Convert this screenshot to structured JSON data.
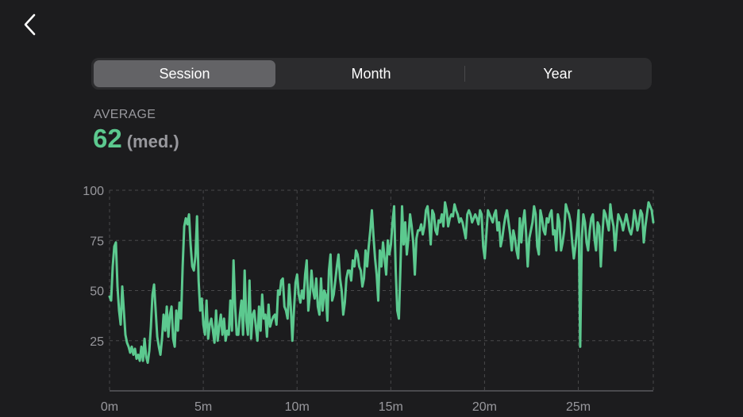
{
  "nav": {
    "back_icon": "chevron-left-icon"
  },
  "segments": [
    {
      "label": "Session",
      "selected": true
    },
    {
      "label": "Month",
      "selected": false
    },
    {
      "label": "Year",
      "selected": false
    }
  ],
  "summary": {
    "label": "AVERAGE",
    "value": "62",
    "unit": "(med.)"
  },
  "colors": {
    "accent": "#5cc98f",
    "background": "#1c1c1e",
    "grid": "#48484a",
    "tick": "#98989d"
  },
  "chart_data": {
    "type": "line",
    "xlabel": "",
    "ylabel": "",
    "xlim": [
      0,
      29
    ],
    "ylim": [
      0,
      100
    ],
    "grid": true,
    "x_ticks": [
      0,
      5,
      10,
      15,
      20,
      25
    ],
    "x_tick_labels": [
      "0m",
      "5m",
      "10m",
      "15m",
      "20m",
      "25m"
    ],
    "y_ticks": [
      25,
      50,
      75,
      100
    ],
    "y_tick_labels": [
      "25",
      "50",
      "75",
      "100"
    ],
    "series": [
      {
        "x_step": 0.1,
        "values": [
          47,
          45,
          62,
          72,
          74,
          52,
          40,
          33,
          52,
          40,
          28,
          24,
          22,
          19,
          22,
          18,
          21,
          16,
          18,
          15,
          22,
          15,
          26,
          17,
          14,
          20,
          32,
          48,
          53,
          40,
          27,
          22,
          18,
          26,
          38,
          30,
          42,
          27,
          38,
          42,
          26,
          22,
          40,
          30,
          44,
          36,
          62,
          82,
          86,
          83,
          88,
          73,
          62,
          60,
          67,
          87,
          55,
          40,
          46,
          33,
          28,
          45,
          26,
          33,
          36,
          30,
          24,
          40,
          25,
          32,
          38,
          28,
          36,
          25,
          30,
          28,
          45,
          30,
          65,
          42,
          28,
          28,
          38,
          45,
          28,
          60,
          35,
          28,
          55,
          26,
          38,
          40,
          32,
          25,
          42,
          30,
          48,
          36,
          38,
          27,
          43,
          32,
          35,
          37,
          38,
          33,
          50,
          48,
          55,
          56,
          42,
          40,
          36,
          53,
          42,
          25,
          40,
          54,
          58,
          48,
          44,
          50,
          46,
          58,
          65,
          40,
          48,
          60,
          50,
          46,
          56,
          42,
          38,
          56,
          40,
          50,
          48,
          35,
          60,
          68,
          45,
          48,
          55,
          62,
          68,
          56,
          50,
          38,
          44,
          56,
          60,
          60,
          55,
          65,
          62,
          70,
          68,
          62,
          60,
          52,
          56,
          70,
          62,
          72,
          80,
          90,
          77,
          66,
          58,
          45,
          70,
          62,
          74,
          66,
          58,
          75,
          68,
          73,
          84,
          92,
          60,
          40,
          36,
          62,
          92,
          73,
          84,
          68,
          76,
          88,
          82,
          74,
          58,
          76,
          80,
          80,
          83,
          78,
          82,
          90,
          92,
          84,
          73,
          90,
          88,
          80,
          78,
          85,
          84,
          88,
          82,
          94,
          90,
          82,
          86,
          88,
          87,
          93,
          90,
          88,
          84,
          86,
          84,
          80,
          76,
          88,
          90,
          88,
          84,
          86,
          88,
          86,
          83,
          90,
          88,
          72,
          66,
          78,
          90,
          88,
          86,
          84,
          88,
          90,
          80,
          84,
          72,
          76,
          82,
          87,
          90,
          84,
          78,
          70,
          80,
          76,
          70,
          66,
          86,
          74,
          84,
          90,
          78,
          62,
          76,
          80,
          84,
          92,
          88,
          72,
          68,
          90,
          86,
          80,
          78,
          86,
          84,
          88,
          90,
          78,
          80,
          70,
          88,
          84,
          70,
          74,
          80,
          93,
          90,
          88,
          84,
          74,
          66,
          72,
          80,
          90,
          22,
          76,
          88,
          84,
          74,
          70,
          80,
          86,
          88,
          76,
          70,
          84,
          82,
          62,
          78,
          90,
          88,
          84,
          80,
          93,
          86,
          82,
          70,
          80,
          88,
          86,
          84,
          80,
          84,
          88,
          84,
          80,
          78,
          82,
          90,
          86,
          80,
          84,
          90,
          88,
          74,
          82,
          88,
          94,
          92,
          90,
          84
        ]
      }
    ]
  }
}
